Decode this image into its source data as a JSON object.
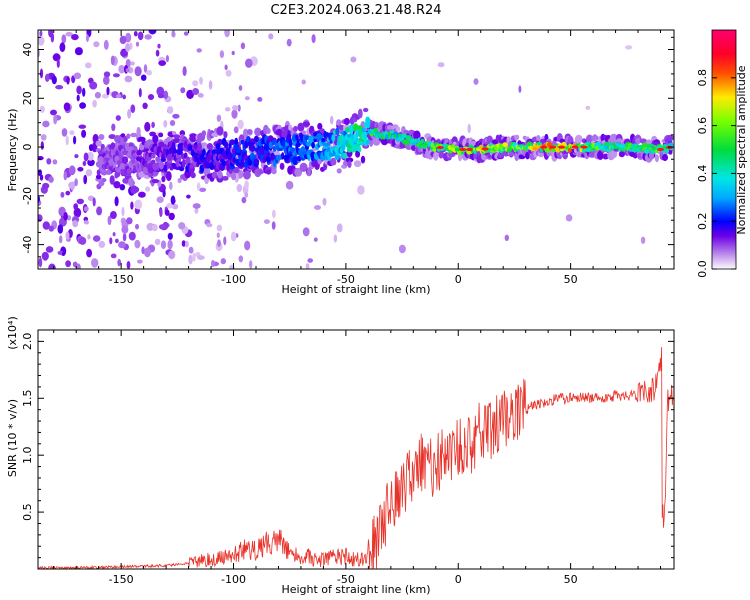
{
  "title": "C2E3.2024.063.21.48.R24",
  "chart_data": [
    {
      "type": "heatmap",
      "xlabel": "Height of straight line (km)",
      "ylabel": "Frequency (Hz)",
      "xlim": [
        -187,
        96
      ],
      "ylim": [
        -50,
        48
      ],
      "x_ticks": [
        -150,
        -100,
        -50,
        0,
        50
      ],
      "x_tick_labels": [
        "-150",
        "-100",
        "-50",
        "0",
        "50"
      ],
      "y_ticks": [
        -40,
        -20,
        0,
        20,
        40
      ],
      "y_tick_labels": [
        "-40",
        "-20",
        "0",
        "20",
        "40"
      ],
      "colorbar": {
        "label": "Normalized spectral amplitude",
        "range": [
          0,
          1
        ],
        "ticks": [
          0.0,
          0.2,
          0.4,
          0.6,
          0.8
        ],
        "tick_labels": [
          "0.0",
          "0.2",
          "0.4",
          "0.6",
          "0.8"
        ],
        "colormap": "rainbow (white-violet-blue-cyan-green-yellow-red-magenta)"
      },
      "ridge": {
        "x": [
          -150,
          -125,
          -100,
          -80,
          -60,
          -45,
          -40,
          -30,
          -20,
          -10,
          0,
          10,
          20,
          30,
          40,
          50,
          60,
          70,
          80,
          90,
          95
        ],
        "frequency": [
          -5,
          -4,
          -3,
          -1,
          0,
          3,
          6,
          5,
          2,
          0,
          -1,
          -1,
          0,
          0,
          0,
          0,
          0,
          0,
          0,
          -1,
          0
        ],
        "amplitude": [
          0.12,
          0.18,
          0.22,
          0.28,
          0.32,
          0.5,
          0.55,
          0.5,
          0.55,
          0.6,
          0.7,
          0.75,
          0.7,
          0.65,
          0.85,
          0.8,
          0.6,
          0.6,
          0.55,
          0.6,
          0.4
        ]
      },
      "grid": false
    },
    {
      "type": "line",
      "xlabel": "Height of straight line (km)",
      "ylabel": "SNR (10 * v/v)",
      "y_multiplier_label": "(x10⁴)",
      "xlim": [
        -187,
        96
      ],
      "ylim": [
        0,
        2.1
      ],
      "x_ticks": [
        -150,
        -100,
        -50,
        0,
        50
      ],
      "x_tick_labels": [
        "-150",
        "-100",
        "-50",
        "0",
        "50"
      ],
      "y_ticks": [
        0.5,
        1.0,
        1.5,
        2.0
      ],
      "y_tick_labels": [
        "0.5",
        "1.0",
        "1.5",
        "2.0"
      ],
      "color": "#e8332a",
      "grid": false,
      "series": [
        {
          "x": [
            -187,
            -170,
            -150,
            -130,
            -120,
            -110,
            -100,
            -95,
            -90,
            -85,
            -80,
            -75,
            -70,
            -65,
            -60,
            -55,
            -50,
            -45,
            -40,
            -35,
            -30,
            -25,
            -20,
            -15,
            -10,
            -5,
            0,
            5,
            10,
            15,
            20,
            25,
            30,
            35,
            40,
            50,
            60,
            70,
            80,
            85,
            88,
            90,
            91,
            92,
            93,
            96
          ],
          "values": [
            0.01,
            0.01,
            0.02,
            0.03,
            0.05,
            0.08,
            0.12,
            0.18,
            0.16,
            0.22,
            0.28,
            0.15,
            0.12,
            0.1,
            0.08,
            0.1,
            0.12,
            0.08,
            0.1,
            0.3,
            0.6,
            0.75,
            0.85,
            0.95,
            0.9,
            1.0,
            1.05,
            1.1,
            1.2,
            1.25,
            1.3,
            1.35,
            1.4,
            1.45,
            1.48,
            1.5,
            1.5,
            1.52,
            1.52,
            1.55,
            1.6,
            1.8,
            2.0,
            0.4,
            1.5,
            1.5
          ]
        }
      ]
    }
  ]
}
